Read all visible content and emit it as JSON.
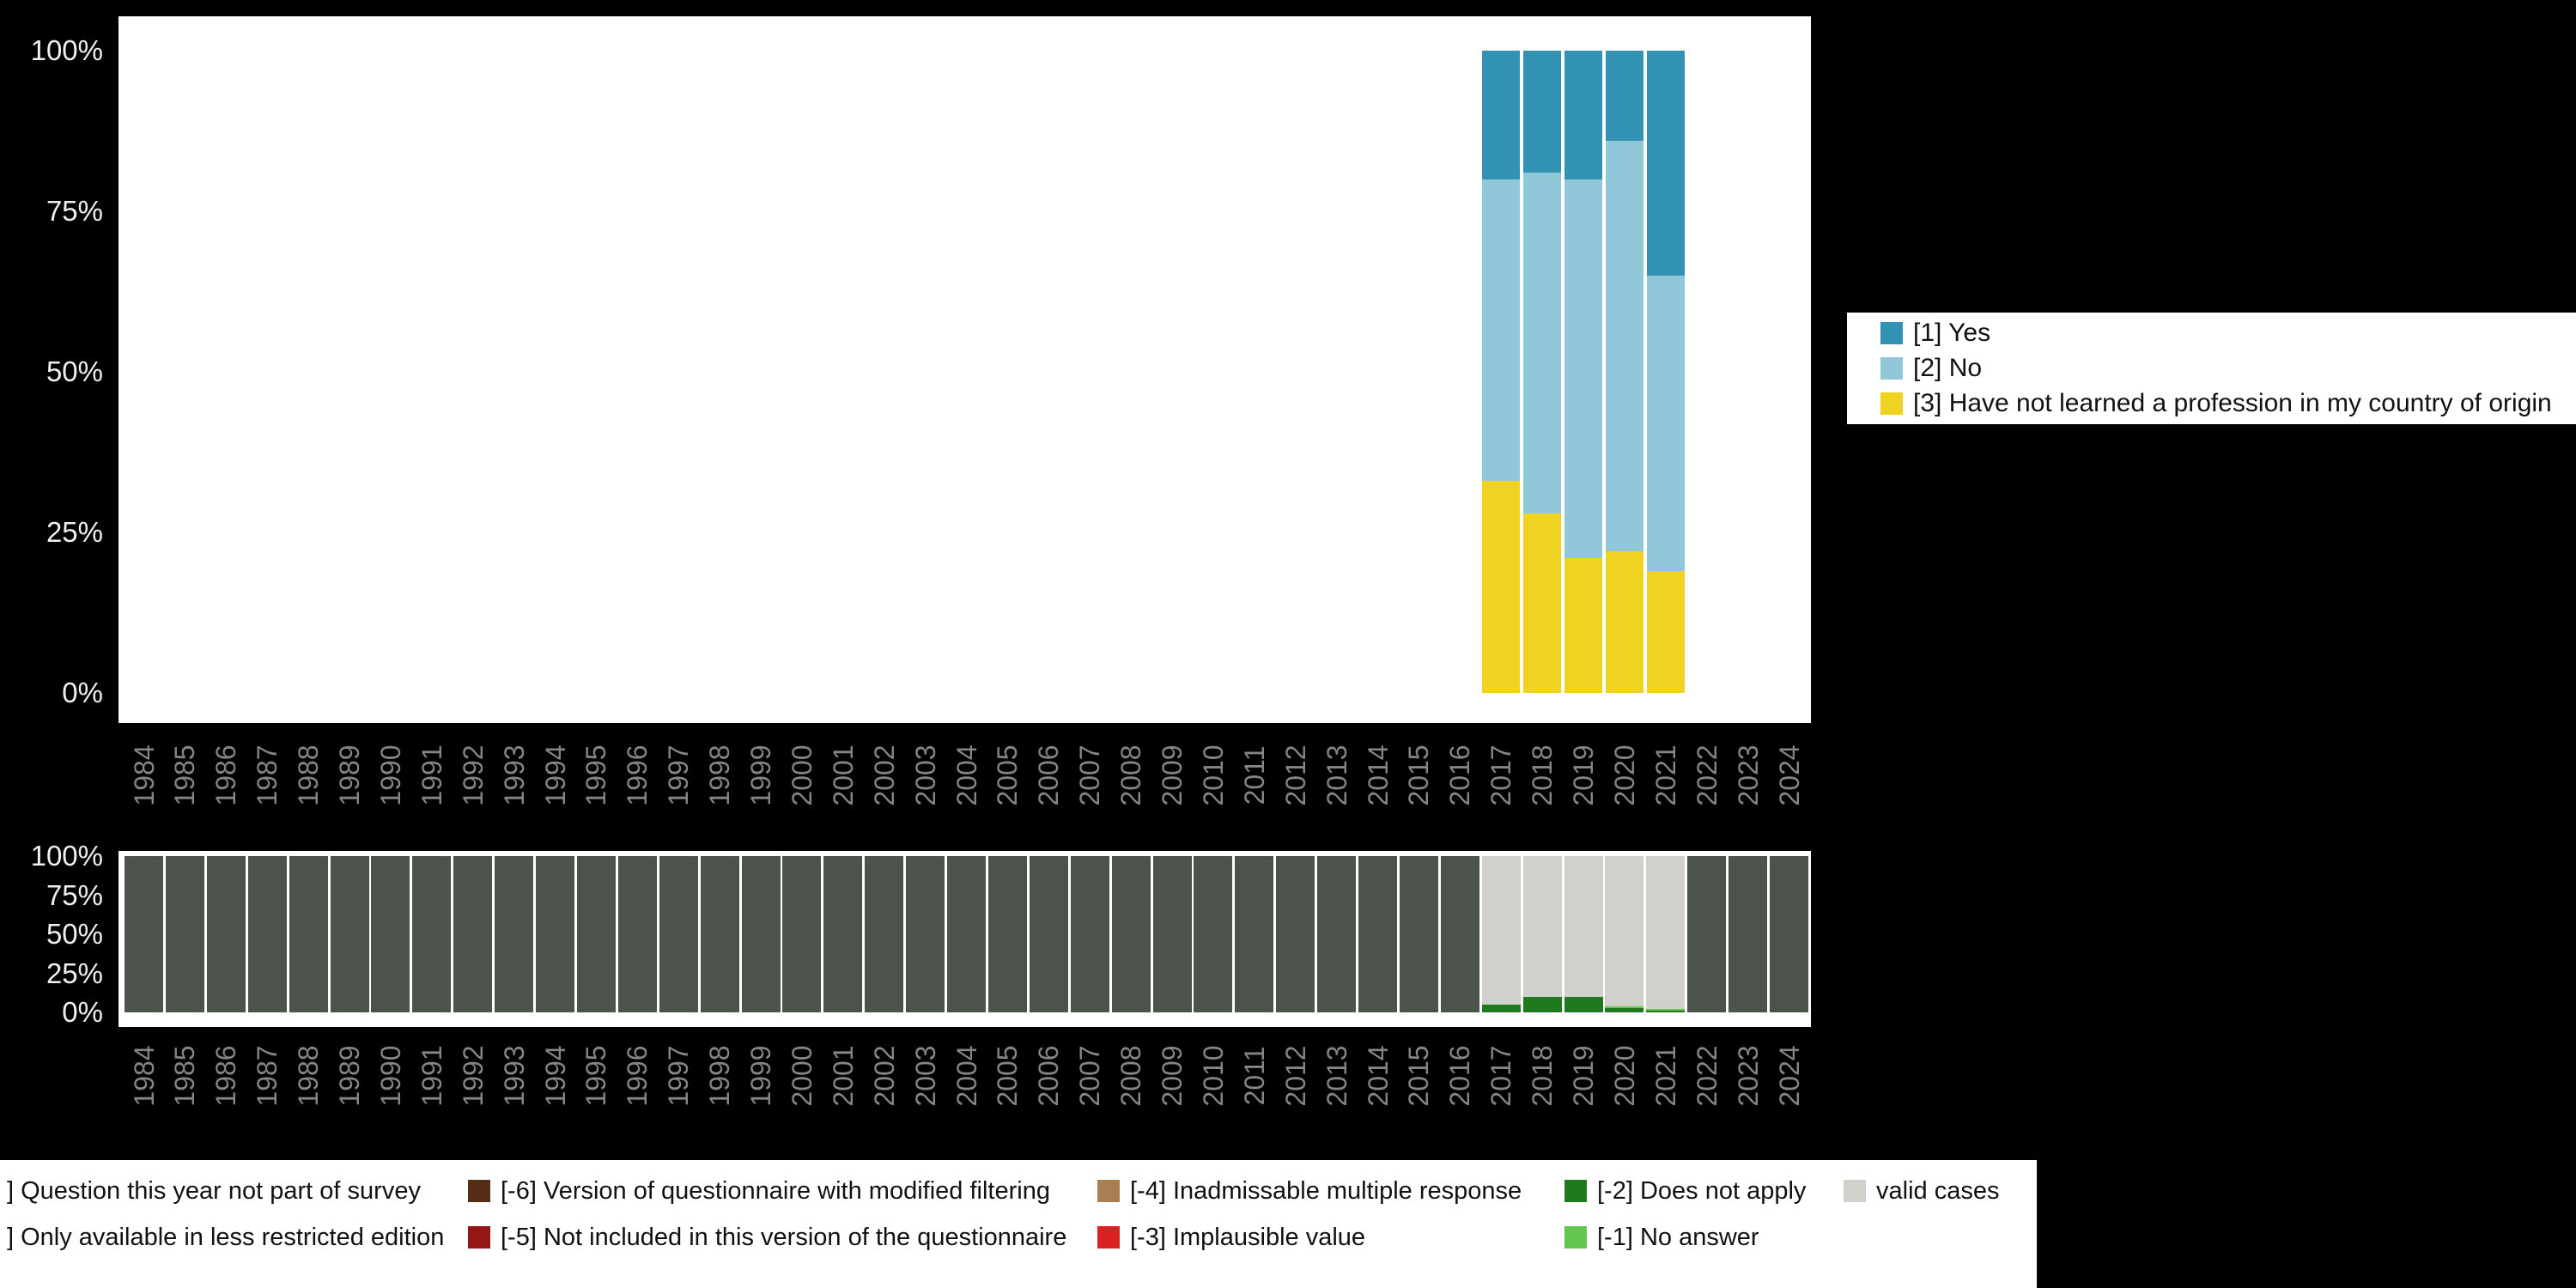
{
  "page": {
    "background": "#000000",
    "plot_background": "#ffffff",
    "y_tick_color": "#efefef",
    "year_label_color": "#858585",
    "legend_background": "#ffffff",
    "legend_text_color": "#111111"
  },
  "chart_data": [
    {
      "type": "bar",
      "stacked": true,
      "title": "",
      "xlabel": "",
      "ylabel": "",
      "ylim": [
        0,
        100
      ],
      "yticks": [
        "100%",
        "75%",
        "50%",
        "25%",
        "0%"
      ],
      "x_years": [
        "1984",
        "1985",
        "1986",
        "1987",
        "1988",
        "1989",
        "1990",
        "1991",
        "1992",
        "1993",
        "1994",
        "1995",
        "1996",
        "1997",
        "1998",
        "1999",
        "2000",
        "2001",
        "2002",
        "2003",
        "2004",
        "2005",
        "2006",
        "2007",
        "2008",
        "2009",
        "2010",
        "2011",
        "2012",
        "2013",
        "2014",
        "2015",
        "2016",
        "2017",
        "2018",
        "2019",
        "2020",
        "2021",
        "2022",
        "2023",
        "2024"
      ],
      "bar_years": [
        "2017",
        "2018",
        "2019",
        "2020",
        "2021"
      ],
      "series": [
        {
          "name": "[3] Have not learned a profession in my country of origin",
          "color": "#f0d222",
          "values": [
            33,
            28,
            21,
            22,
            19
          ]
        },
        {
          "name": "[2] No",
          "color": "#90c8da",
          "values": [
            47,
            53,
            59,
            64,
            46
          ]
        },
        {
          "name": "[1] Yes",
          "color": "#3292b4",
          "values": [
            20,
            19,
            20,
            14,
            35
          ]
        }
      ],
      "legend": {
        "position": "right",
        "entries": [
          {
            "label": "[1] Yes",
            "color": "#3292b4"
          },
          {
            "label": "[2] No",
            "color": "#90c8da"
          },
          {
            "label": "[3] Have not learned a profession in my country of origin",
            "color": "#f0d222"
          }
        ]
      }
    },
    {
      "type": "bar",
      "stacked": true,
      "title": "",
      "ylim": [
        0,
        100
      ],
      "yticks": [
        "100%",
        "75%",
        "50%",
        "25%",
        "0%"
      ],
      "x_years": [
        "1984",
        "1985",
        "1986",
        "1987",
        "1988",
        "1989",
        "1990",
        "1991",
        "1992",
        "1993",
        "1994",
        "1995",
        "1996",
        "1997",
        "1998",
        "1999",
        "2000",
        "2001",
        "2002",
        "2003",
        "2004",
        "2005",
        "2006",
        "2007",
        "2008",
        "2009",
        "2010",
        "2011",
        "2012",
        "2013",
        "2014",
        "2015",
        "2016",
        "2017",
        "2018",
        "2019",
        "2020",
        "2021",
        "2022",
        "2023",
        "2024"
      ],
      "series": [
        {
          "name": "Does not apply",
          "color": "#1f7a1f",
          "default": 0,
          "values_by_year": {
            "2017": 5,
            "2018": 10,
            "2019": 10,
            "2020": 3,
            "2021": 1
          }
        },
        {
          "name": "No answer",
          "color": "#63c74f",
          "default": 0,
          "values_by_year": {
            "2020": 1,
            "2021": 1
          }
        },
        {
          "name": "valid cases",
          "color": "#d0d1cb",
          "default": 0,
          "values_by_year": {
            "2017": 95,
            "2018": 90,
            "2019": 90,
            "2020": 96,
            "2021": 98
          }
        },
        {
          "name": "Question this year not part of survey",
          "color": "#4b534b",
          "default": 100,
          "values_by_year": {
            "2017": 0,
            "2018": 0,
            "2019": 0,
            "2020": 0,
            "2021": 0
          }
        }
      ]
    }
  ],
  "missings_legend": {
    "rows": [
      [
        {
          "label": "] Question this year not part of survey",
          "color": "#4b534b",
          "cut": true
        },
        {
          "label": "[-6] Version of questionnaire with modified filtering",
          "color": "#552e14"
        },
        {
          "label": "[-4] Inadmissable multiple response",
          "color": "#a97e51"
        },
        {
          "label": "[-2] Does not apply",
          "color": "#1f7a1f"
        },
        {
          "label": "valid cases",
          "color": "#d0d1cb"
        }
      ],
      [
        {
          "label": "] Only available in less restricted edition",
          "color": "#8a8a8a",
          "cut": true
        },
        {
          "label": "[-5] Not included in this version of the questionnaire",
          "color": "#941616"
        },
        {
          "label": "[-3] Implausible value",
          "color": "#da2121"
        },
        {
          "label": "[-1] No answer",
          "color": "#63c74f"
        }
      ]
    ]
  }
}
